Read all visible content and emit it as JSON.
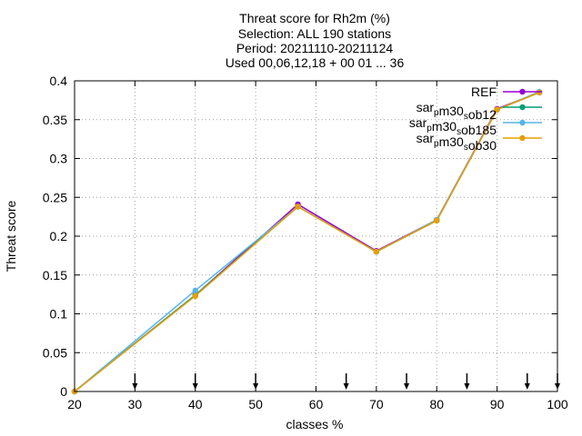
{
  "chart_data": {
    "type": "line",
    "title_lines": [
      "Threat score  for Rh2m (%)",
      "Selection: ALL    190 stations",
      "Period: 20211110-20211124",
      "Used 00,06,12,18 + 00 01 ... 36"
    ],
    "xlabel": "classes %",
    "ylabel": "Threat score",
    "xlim": [
      20,
      100
    ],
    "ylim": [
      0,
      0.4
    ],
    "x_ticks": [
      20,
      30,
      40,
      50,
      60,
      70,
      80,
      90,
      100
    ],
    "y_ticks": [
      0,
      0.05,
      0.1,
      0.15,
      0.2,
      0.25,
      0.3,
      0.35,
      0.4
    ],
    "y_tick_labels": [
      "0",
      "0.05",
      "0.1",
      "0.15",
      "0.2",
      "0.25",
      "0.3",
      "0.35",
      "0.4"
    ],
    "grid": true,
    "legend_position": "top-right",
    "class_markers_x": [
      30,
      40,
      50,
      65,
      75,
      85,
      95,
      100
    ],
    "x": [
      20,
      40,
      57,
      70,
      80,
      90,
      97
    ],
    "series": [
      {
        "name": "REF",
        "legend_main": "REF",
        "legend_sub": "",
        "legend_tail": "",
        "color": "#9400d3",
        "values": [
          0,
          0.124,
          0.241,
          0.181,
          0.221,
          0.364,
          0.385
        ]
      },
      {
        "name": "sar_pm30_sob12",
        "legend_main": "sar",
        "legend_sub": "p",
        "legend_tail": "m30",
        "legend_sub2": "s",
        "legend_tail2": "ob12",
        "color": "#009e73",
        "values": [
          0,
          0.124,
          0.238,
          0.18,
          0.22,
          0.363,
          0.385
        ]
      },
      {
        "name": "sar_pm30_sob185",
        "legend_main": "sar",
        "legend_sub": "p",
        "legend_tail": "m30",
        "legend_sub2": "s",
        "legend_tail2": "ob185",
        "color": "#56b4e9",
        "values": [
          0,
          0.13,
          0.238,
          0.18,
          0.221,
          0.363,
          0.386
        ]
      },
      {
        "name": "sar_pm30_sob30",
        "legend_main": "sar",
        "legend_sub": "p",
        "legend_tail": "m30",
        "legend_sub2": "s",
        "legend_tail2": "ob30",
        "color": "#e69f00",
        "values": [
          0,
          0.123,
          0.238,
          0.18,
          0.22,
          0.363,
          0.385
        ]
      }
    ]
  }
}
